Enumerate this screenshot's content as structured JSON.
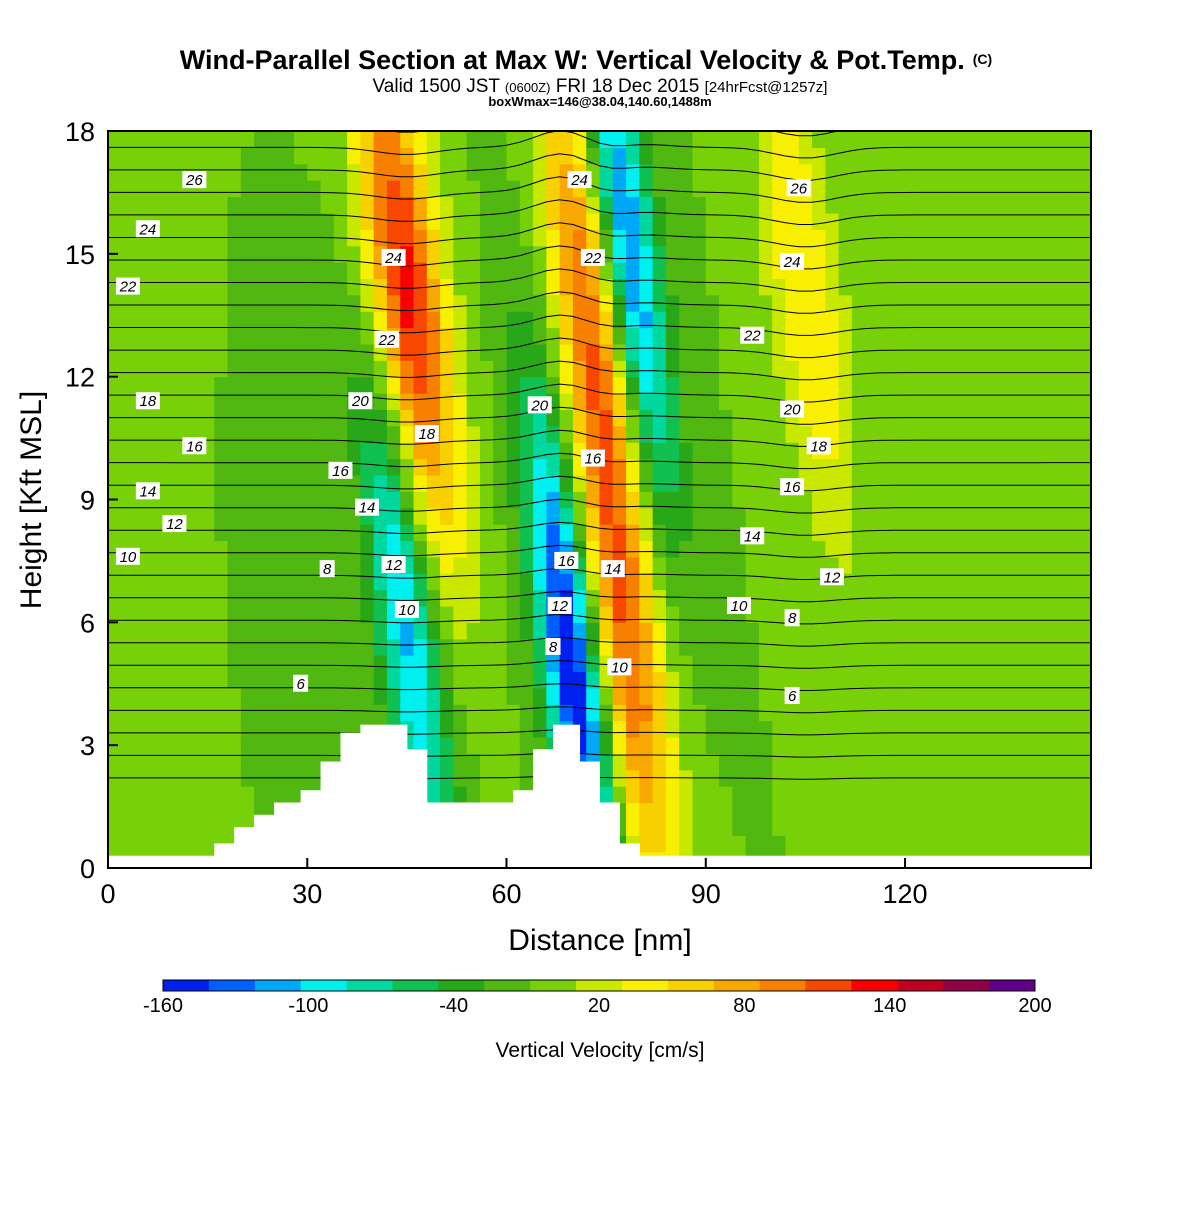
{
  "chart_data": {
    "type": "heatmap",
    "title": "Wind-Parallel Section at Max W: Vertical Velocity & Pot.Temp.",
    "title_mark": "(C)",
    "subtitle_parts": [
      "Valid 1500 JST ",
      "(0600Z)",
      " FRI 18 Dec 2015 ",
      "[24hrFcst@1257z]"
    ],
    "subtitle2": "boxWmax=146@38.04,140.60,1488m",
    "xlabel": "Distance [nm]",
    "ylabel": "Height [Kft MSL]",
    "xlim": [
      0,
      148
    ],
    "ylim": [
      0,
      18
    ],
    "x_ticks": [
      "0",
      "30",
      "60",
      "90",
      "120"
    ],
    "x_tick_values": [
      0,
      30,
      60,
      90,
      120
    ],
    "y_ticks": [
      "0",
      "3",
      "6",
      "9",
      "12",
      "15",
      "18"
    ],
    "y_tick_values": [
      0,
      3,
      6,
      9,
      12,
      15,
      18
    ],
    "colorbar": {
      "label": "Vertical Velocity [cm/s]",
      "min": -160,
      "max": 200,
      "step": 20,
      "tick_labels": [
        "-160",
        "-100",
        "-40",
        "20",
        "80",
        "140",
        "200"
      ],
      "tick_values": [
        -160,
        -100,
        -40,
        20,
        80,
        140,
        200
      ],
      "colors": [
        "#0020f0",
        "#0060ff",
        "#00a8f8",
        "#00f0f0",
        "#00d8a0",
        "#10c050",
        "#28a818",
        "#50b810",
        "#78d008",
        "#c8e800",
        "#f8f000",
        "#f8d000",
        "#f8a800",
        "#f88000",
        "#f84800",
        "#f80000",
        "#c00020",
        "#900048",
        "#600088"
      ]
    },
    "background_wind_cms": 0,
    "features": [
      {
        "label": "downdraft",
        "x": 45,
        "y": 6,
        "w": -110
      },
      {
        "label": "updraft",
        "x": 45,
        "y": 14,
        "w": 150
      },
      {
        "label": "downdraft",
        "x": 70,
        "y": 5,
        "w": -170
      },
      {
        "label": "updraft",
        "x": 73,
        "y": 14,
        "w": 120
      },
      {
        "label": "downdraft",
        "x": 78,
        "y": 15,
        "w": -150
      },
      {
        "label": "updraft",
        "x": 78,
        "y": 5,
        "w": 110
      },
      {
        "label": "updraft",
        "x": 105,
        "y": 14,
        "w": 60
      }
    ],
    "terrain": [
      {
        "x": [
          0,
          16
        ],
        "top": 0.3
      },
      {
        "x": [
          16,
          19
        ],
        "top": 0.6
      },
      {
        "x": [
          19,
          22
        ],
        "top": 1.0
      },
      {
        "x": [
          22,
          25
        ],
        "top": 1.3
      },
      {
        "x": [
          25,
          29
        ],
        "top": 1.6
      },
      {
        "x": [
          29,
          32
        ],
        "top": 1.9
      },
      {
        "x": [
          32,
          35
        ],
        "top": 2.6
      },
      {
        "x": [
          35,
          38
        ],
        "top": 3.3
      },
      {
        "x": [
          38,
          42
        ],
        "top": 3.5
      },
      {
        "x": [
          42,
          45
        ],
        "top": 3.5
      },
      {
        "x": [
          45,
          48
        ],
        "top": 2.9
      },
      {
        "x": [
          48,
          55
        ],
        "top": 1.6
      },
      {
        "x": [
          55,
          61
        ],
        "top": 1.6
      },
      {
        "x": [
          61,
          64
        ],
        "top": 1.9
      },
      {
        "x": [
          64,
          67
        ],
        "top": 2.9
      },
      {
        "x": [
          67,
          71
        ],
        "top": 3.5
      },
      {
        "x": [
          71,
          74
        ],
        "top": 2.6
      },
      {
        "x": [
          74,
          77
        ],
        "top": 1.6
      },
      {
        "x": [
          77,
          80
        ],
        "top": 0.6
      },
      {
        "x": [
          80,
          84
        ],
        "top": 0.3
      },
      {
        "x": [
          84,
          148
        ],
        "top": 0.3
      }
    ],
    "theta_labels": [
      {
        "text": "26",
        "x": 13,
        "y": 16.8
      },
      {
        "text": "24",
        "x": 6,
        "y": 15.6
      },
      {
        "text": "22",
        "x": 3,
        "y": 14.2
      },
      {
        "text": "18",
        "x": 6,
        "y": 11.4
      },
      {
        "text": "16",
        "x": 13,
        "y": 10.3
      },
      {
        "text": "14",
        "x": 6,
        "y": 9.2
      },
      {
        "text": "12",
        "x": 10,
        "y": 8.4
      },
      {
        "text": "10",
        "x": 3,
        "y": 7.6
      },
      {
        "text": "8",
        "x": 33,
        "y": 7.3
      },
      {
        "text": "6",
        "x": 29,
        "y": 4.5
      },
      {
        "text": "20",
        "x": 38,
        "y": 11.4
      },
      {
        "text": "16",
        "x": 35,
        "y": 9.7
      },
      {
        "text": "14",
        "x": 39,
        "y": 8.8
      },
      {
        "text": "12",
        "x": 43,
        "y": 7.4
      },
      {
        "text": "10",
        "x": 45,
        "y": 6.3
      },
      {
        "text": "22",
        "x": 42,
        "y": 12.9
      },
      {
        "text": "24",
        "x": 43,
        "y": 14.9
      },
      {
        "text": "18",
        "x": 48,
        "y": 10.6
      },
      {
        "text": "20",
        "x": 65,
        "y": 11.3
      },
      {
        "text": "24",
        "x": 71,
        "y": 16.8
      },
      {
        "text": "22",
        "x": 73,
        "y": 14.9
      },
      {
        "text": "16",
        "x": 73,
        "y": 10.0
      },
      {
        "text": "16",
        "x": 69,
        "y": 7.5
      },
      {
        "text": "12",
        "x": 68,
        "y": 6.4
      },
      {
        "text": "8",
        "x": 67,
        "y": 5.4
      },
      {
        "text": "14",
        "x": 76,
        "y": 7.3
      },
      {
        "text": "10",
        "x": 77,
        "y": 4.9
      },
      {
        "text": "26",
        "x": 104,
        "y": 16.6
      },
      {
        "text": "24",
        "x": 103,
        "y": 14.8
      },
      {
        "text": "22",
        "x": 97,
        "y": 13.0
      },
      {
        "text": "20",
        "x": 103,
        "y": 11.2
      },
      {
        "text": "18",
        "x": 107,
        "y": 10.3
      },
      {
        "text": "16",
        "x": 103,
        "y": 9.3
      },
      {
        "text": "14",
        "x": 97,
        "y": 8.1
      },
      {
        "text": "12",
        "x": 109,
        "y": 7.1
      },
      {
        "text": "10",
        "x": 95,
        "y": 6.4
      },
      {
        "text": "8",
        "x": 103,
        "y": 6.1
      },
      {
        "text": "6",
        "x": 103,
        "y": 4.2
      }
    ]
  }
}
